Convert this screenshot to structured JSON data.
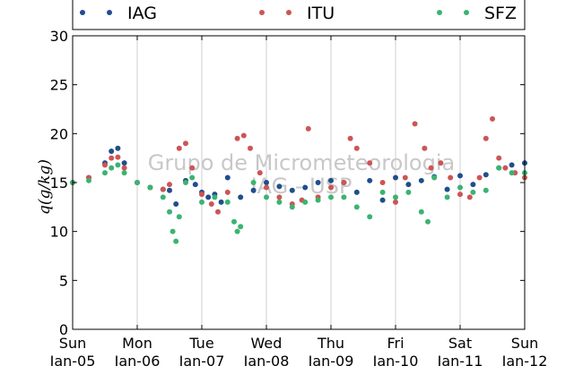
{
  "chart_data": {
    "type": "scatter",
    "title": "",
    "xlabel": "",
    "ylabel": "q(g/kg)",
    "ylim": [
      0,
      30
    ],
    "xlim": [
      0,
      7
    ],
    "y_ticks": [
      0,
      5,
      10,
      15,
      20,
      25,
      30
    ],
    "x_ticks": [
      {
        "day": "Sun",
        "date": "Jan-05",
        "value": 0
      },
      {
        "day": "Mon",
        "date": "Jan-06",
        "value": 1
      },
      {
        "day": "Tue",
        "date": "Jan-07",
        "value": 2
      },
      {
        "day": "Wed",
        "date": "Jan-08",
        "value": 3
      },
      {
        "day": "Thu",
        "date": "Jan-09",
        "value": 4
      },
      {
        "day": "Fri",
        "date": "Jan-10",
        "value": 5
      },
      {
        "day": "Sat",
        "date": "Jan-11",
        "value": 6
      },
      {
        "day": "Sun",
        "date": "Jan-12",
        "value": 7
      }
    ],
    "grid": "vertical",
    "legend_position": "top",
    "watermark": [
      "Grupo de Micrometeorologia",
      "IAG - USP"
    ],
    "series": [
      {
        "name": "IAG",
        "color": "#1f4e8c",
        "x": [
          0,
          0.25,
          0.5,
          0.6,
          0.7,
          0.8,
          1.0,
          1.2,
          1.4,
          1.5,
          1.6,
          1.75,
          1.9,
          2.0,
          2.1,
          2.2,
          2.3,
          2.4,
          2.6,
          2.8,
          3.0,
          3.2,
          3.4,
          3.6,
          3.8,
          4.0,
          4.2,
          4.4,
          4.6,
          4.8,
          5.0,
          5.2,
          5.4,
          5.6,
          5.8,
          6.0,
          6.2,
          6.4,
          6.6,
          6.8,
          7.0
        ],
        "y": [
          15.0,
          15.5,
          17.0,
          18.2,
          18.5,
          17.0,
          15.0,
          14.5,
          14.3,
          14.2,
          12.8,
          15.2,
          14.8,
          14.0,
          13.5,
          13.8,
          13.0,
          15.5,
          13.5,
          14.2,
          15.0,
          14.6,
          14.2,
          14.5,
          15.0,
          15.2,
          15.0,
          14.0,
          15.2,
          13.2,
          15.5,
          14.8,
          15.2,
          15.6,
          14.3,
          15.7,
          14.8,
          15.8,
          16.5,
          16.8,
          17.0
        ]
      },
      {
        "name": "ITU",
        "color": "#cc5555",
        "x": [
          0,
          0.25,
          0.5,
          0.6,
          0.7,
          0.8,
          1.0,
          1.2,
          1.4,
          1.5,
          1.65,
          1.75,
          1.85,
          2.0,
          2.15,
          2.25,
          2.4,
          2.55,
          2.65,
          2.75,
          2.9,
          3.0,
          3.2,
          3.4,
          3.55,
          3.65,
          3.8,
          4.0,
          4.2,
          4.3,
          4.4,
          4.6,
          4.8,
          5.0,
          5.15,
          5.3,
          5.45,
          5.55,
          5.7,
          5.85,
          6.0,
          6.15,
          6.3,
          6.4,
          6.5,
          6.6,
          6.7,
          6.85,
          7.0
        ],
        "y": [
          15.0,
          15.5,
          16.8,
          17.5,
          17.6,
          16.5,
          15.0,
          14.5,
          14.3,
          14.8,
          18.5,
          19.0,
          16.5,
          13.8,
          12.8,
          12.0,
          14.0,
          19.5,
          19.8,
          18.5,
          16.0,
          14.5,
          13.5,
          12.8,
          13.2,
          20.5,
          13.5,
          14.5,
          15.0,
          19.5,
          18.5,
          17.0,
          15.0,
          13.0,
          15.5,
          21.0,
          18.5,
          16.5,
          17.0,
          15.5,
          13.8,
          13.5,
          15.5,
          19.5,
          21.5,
          17.5,
          16.5,
          16.0,
          15.5
        ]
      },
      {
        "name": "SFZ",
        "color": "#3cb371",
        "x": [
          0,
          0.25,
          0.5,
          0.6,
          0.7,
          0.8,
          1.0,
          1.2,
          1.4,
          1.5,
          1.55,
          1.6,
          1.65,
          1.75,
          1.85,
          2.0,
          2.2,
          2.4,
          2.5,
          2.55,
          2.6,
          2.8,
          3.0,
          3.2,
          3.4,
          3.6,
          3.8,
          4.0,
          4.2,
          4.4,
          4.6,
          4.8,
          5.0,
          5.2,
          5.4,
          5.5,
          5.6,
          5.8,
          6.0,
          6.2,
          6.4,
          6.6,
          6.8,
          7.0
        ],
        "y": [
          15.0,
          15.2,
          16.0,
          16.5,
          16.8,
          16.0,
          15.0,
          14.5,
          13.5,
          12.0,
          10.0,
          9.0,
          11.5,
          15.0,
          15.5,
          13.0,
          13.5,
          13.0,
          11.0,
          10.0,
          10.5,
          15.0,
          13.5,
          13.0,
          12.5,
          13.0,
          13.2,
          13.5,
          13.5,
          12.5,
          11.5,
          14.0,
          13.5,
          14.0,
          12.0,
          11.0,
          15.5,
          13.5,
          14.5,
          14.0,
          14.2,
          16.5,
          16.0,
          16.0
        ]
      }
    ]
  }
}
